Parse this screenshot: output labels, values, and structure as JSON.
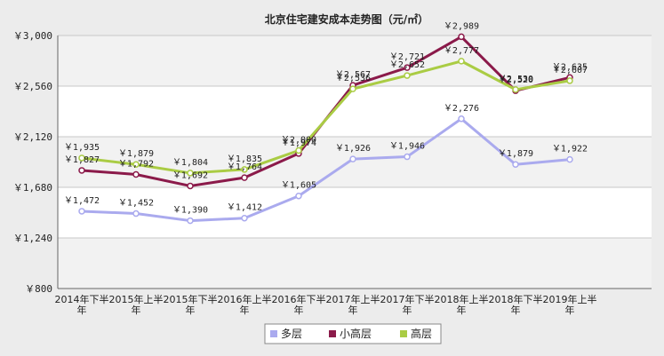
{
  "chart_data": {
    "type": "line",
    "title": "北京住宅建安成本走势图（元/㎡）",
    "xlabel": "",
    "ylabel": "",
    "ylim": [
      800,
      3000
    ],
    "yticks": [
      800,
      1240,
      1680,
      2120,
      2560,
      3000
    ],
    "ytick_labels": [
      "￥800",
      "￥1,240",
      "￥1,680",
      "￥2,120",
      "￥2,560",
      "￥3,000"
    ],
    "grid": true,
    "legend_position": "bottom",
    "categories": [
      "2014年下半年",
      "2015年上半年",
      "2015年下半年",
      "2016年上半年",
      "2016年下半年",
      "2017年上半年",
      "2017年下半年",
      "2018年上半年",
      "2018年下半年",
      "2019年上半年"
    ],
    "series": [
      {
        "name": "多层",
        "color": "#aaaaee",
        "values": [
          1472,
          1452,
          1390,
          1412,
          1605,
          1926,
          1946,
          2276,
          1879,
          1922
        ],
        "labels": [
          "￥1,472",
          "￥1,452",
          "￥1,390",
          "￥1,412",
          "￥1,605",
          "￥1,926",
          "￥1,946",
          "￥2,276",
          "￥1,879",
          "￥1,922"
        ]
      },
      {
        "name": "小高层",
        "color": "#8b1a4a",
        "values": [
          1827,
          1792,
          1692,
          1764,
          1974,
          2567,
          2721,
          2989,
          2520,
          2635
        ],
        "labels": [
          "￥1,827",
          "￥1,792",
          "￥1,692",
          "￥1,764",
          "￥1,974",
          "￥2,567",
          "￥2,721",
          "￥2,989",
          "￥2,520",
          "￥2,635"
        ]
      },
      {
        "name": "高层",
        "color": "#aacc44",
        "values": [
          1935,
          1879,
          1804,
          1835,
          2000,
          2536,
          2652,
          2777,
          2530,
          2607
        ],
        "labels": [
          "￥1,935",
          "￥1,879",
          "￥1,804",
          "￥1,835",
          "￥2,000",
          "￥2,536",
          "￥2,652",
          "￥2,777",
          "￥2,530",
          "￥2,607"
        ]
      }
    ]
  }
}
